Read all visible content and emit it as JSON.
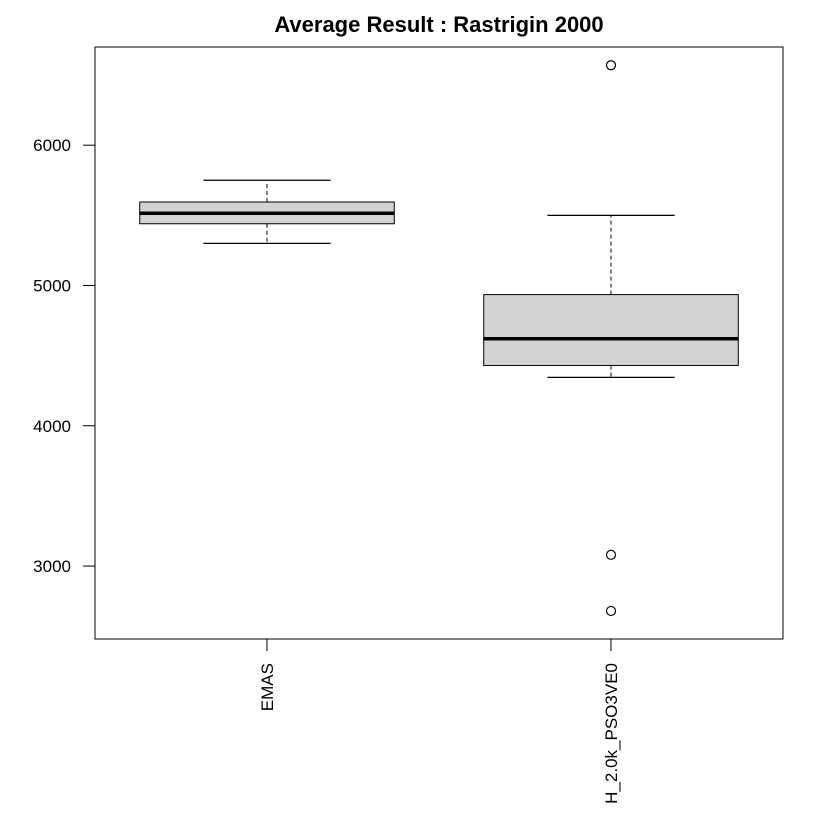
{
  "chart_data": {
    "type": "boxplot",
    "title": "Average Result : Rastrigin 2000",
    "xlabel": "",
    "ylabel": "",
    "ylim": [
      2480,
      6700
    ],
    "y_ticks": [
      3000,
      4000,
      5000,
      6000
    ],
    "grid": false,
    "series": [
      {
        "category": "EMAS",
        "whisker_low": 5300,
        "q1": 5440,
        "median": 5515,
        "q3": 5595,
        "whisker_high": 5750,
        "outliers": []
      },
      {
        "category": "H_2.0k_PSO3VE0",
        "whisker_low": 4345,
        "q1": 4430,
        "median": 4620,
        "q3": 4935,
        "whisker_high": 5500,
        "outliers": [
          6570,
          3080,
          2680
        ]
      }
    ],
    "colors": {
      "box_fill": "#d3d3d3",
      "stroke": "#000000"
    }
  }
}
